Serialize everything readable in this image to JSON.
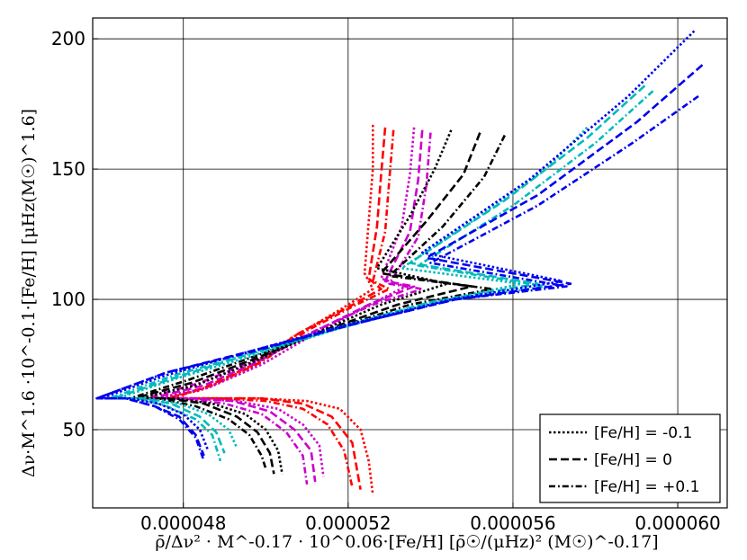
{
  "chart_data": {
    "type": "line",
    "xlabel": "ρ̄/Δν² · M^-0.17 · 10^0.06·[Fe/H] [ρ̄☉/(μHz)² (M☉)^-0.17]",
    "ylabel": "Δν·M^1.6 ·10^-0.1·[Fe/H] [μHz(M☉)^1.6]",
    "xlim": [
      4.58e-05,
      6.12e-05
    ],
    "ylim": [
      20,
      208
    ],
    "xticks": [
      4.8e-05,
      5.2e-05,
      5.6e-05,
      6e-05
    ],
    "xtick_labels": [
      "0.000048",
      "0.000052",
      "0.000056",
      "0.000060"
    ],
    "yticks": [
      50,
      100,
      150,
      200
    ],
    "ytick_labels": [
      "50",
      "100",
      "150",
      "200"
    ],
    "grid": true,
    "legend_position": "bottom-right",
    "legend": [
      {
        "label": "[Fe/H] = -0.1",
        "dash": "dotted"
      },
      {
        "label": "[Fe/H] = 0",
        "dash": "dashed"
      },
      {
        "label": "[Fe/H] = +0.1",
        "dash": "dashdot"
      }
    ],
    "series": [
      {
        "color": "#ff0000",
        "dash": "dotted",
        "x": [
          5.26e-05,
          5.26e-05,
          5.25e-05,
          5.24e-05,
          5.26e-05,
          5.18e-05,
          5.06e-05,
          4.96e-05,
          4.84e-05,
          4.74e-05,
          4.86e-05,
          4.98e-05,
          5.1e-05,
          5.18e-05,
          5.23e-05,
          5.25e-05,
          5.26e-05
        ],
        "y": [
          167,
          150,
          130,
          110,
          104,
          96,
          85,
          73,
          65,
          62,
          62,
          62,
          61,
          58,
          50,
          38,
          25
        ]
      },
      {
        "color": "#ff0000",
        "dash": "dashed",
        "x": [
          5.29e-05,
          5.28e-05,
          5.27e-05,
          5.25e-05,
          5.28e-05,
          5.2e-05,
          5.08e-05,
          4.97e-05,
          4.85e-05,
          4.76e-05,
          4.88e-05,
          4.99e-05,
          5.09e-05,
          5.16e-05,
          5.21e-05,
          5.23e-05
        ],
        "y": [
          166,
          148,
          128,
          108,
          104,
          97,
          87,
          75,
          66,
          62,
          62,
          62,
          60,
          55,
          45,
          27
        ]
      },
      {
        "color": "#ff0000",
        "dash": "dashdot",
        "x": [
          5.31e-05,
          5.3e-05,
          5.29e-05,
          5.26e-05,
          5.3e-05,
          5.22e-05,
          5.1e-05,
          4.99e-05,
          4.87e-05,
          4.77e-05,
          4.89e-05,
          5e-05,
          5.09e-05,
          5.15e-05,
          5.19e-05,
          5.21e-05
        ],
        "y": [
          165,
          146,
          126,
          107,
          104,
          98,
          88,
          76,
          67,
          62,
          62,
          61,
          58,
          52,
          42,
          28
        ]
      },
      {
        "color": "#cc00cc",
        "dash": "dotted",
        "x": [
          5.36e-05,
          5.35e-05,
          5.33e-05,
          5.28e-05,
          5.34e-05,
          5.24e-05,
          5.11e-05,
          4.99e-05,
          4.86e-05,
          4.73e-05,
          4.82e-05,
          4.93e-05,
          5.03e-05,
          5.09e-05,
          5.13e-05,
          5.14e-05
        ],
        "y": [
          166,
          148,
          128,
          108,
          105,
          97,
          86,
          75,
          66,
          62,
          62,
          61,
          58,
          52,
          44,
          32
        ]
      },
      {
        "color": "#cc00cc",
        "dash": "dashed",
        "x": [
          5.38e-05,
          5.37e-05,
          5.35e-05,
          5.29e-05,
          5.36e-05,
          5.25e-05,
          5.11e-05,
          4.98e-05,
          4.85e-05,
          4.72e-05,
          4.82e-05,
          4.92e-05,
          5.01e-05,
          5.07e-05,
          5.11e-05,
          5.12e-05
        ],
        "y": [
          165,
          146,
          126,
          107,
          105,
          98,
          87,
          76,
          67,
          62,
          62,
          61,
          57,
          50,
          42,
          30
        ]
      },
      {
        "color": "#cc00cc",
        "dash": "dashdot",
        "x": [
          5.4e-05,
          5.39e-05,
          5.37e-05,
          5.3e-05,
          5.38e-05,
          5.26e-05,
          5.12e-05,
          4.98e-05,
          4.84e-05,
          4.71e-05,
          4.8e-05,
          4.9e-05,
          4.99e-05,
          5.05e-05,
          5.09e-05,
          5.1e-05
        ],
        "y": [
          164,
          144,
          124,
          106,
          104,
          98,
          88,
          77,
          68,
          62,
          62,
          60,
          56,
          49,
          40,
          29
        ]
      },
      {
        "color": "#000000",
        "dash": "dotted",
        "x": [
          5.45e-05,
          5.41e-05,
          5.35e-05,
          5.27e-05,
          5.44e-05,
          5.28e-05,
          5.12e-05,
          4.97e-05,
          4.83e-05,
          4.69e-05,
          4.78e-05,
          4.87e-05,
          4.95e-05,
          5e-05,
          5.03e-05,
          5.04e-05
        ],
        "y": [
          165,
          150,
          132,
          112,
          106,
          98,
          87,
          76,
          67,
          62,
          62,
          60,
          56,
          50,
          42,
          33
        ]
      },
      {
        "color": "#000000",
        "dash": "dashed",
        "x": [
          5.52e-05,
          5.48e-05,
          5.39e-05,
          5.28e-05,
          5.5e-05,
          5.32e-05,
          5.14e-05,
          4.97e-05,
          4.82e-05,
          4.68e-05,
          4.76e-05,
          4.85e-05,
          4.93e-05,
          4.98e-05,
          5.01e-05,
          5.02e-05
        ],
        "y": [
          164,
          148,
          130,
          110,
          105,
          98,
          88,
          77,
          68,
          62,
          62,
          60,
          55,
          49,
          41,
          33
        ]
      },
      {
        "color": "#000000",
        "dash": "dashdot",
        "x": [
          5.58e-05,
          5.53e-05,
          5.43e-05,
          5.3e-05,
          5.55e-05,
          5.35e-05,
          5.15e-05,
          4.97e-05,
          4.81e-05,
          4.67e-05,
          4.74e-05,
          4.83e-05,
          4.91e-05,
          4.96e-05,
          4.99e-05,
          5e-05
        ],
        "y": [
          163,
          147,
          128,
          109,
          104,
          98,
          88,
          78,
          69,
          62,
          62,
          59,
          54,
          48,
          40,
          35
        ]
      },
      {
        "color": "#00bbbb",
        "dash": "dotted",
        "x": [
          5.78e-05,
          5.68e-05,
          5.52e-05,
          5.33e-05,
          5.62e-05,
          5.38e-05,
          5.16e-05,
          4.96e-05,
          4.79e-05,
          4.64e-05,
          4.71e-05,
          4.79e-05,
          4.86e-05,
          4.91e-05,
          4.93e-05
        ],
        "y": [
          166,
          150,
          132,
          112,
          106,
          98,
          88,
          78,
          70,
          62,
          62,
          60,
          56,
          50,
          43
        ]
      },
      {
        "color": "#00bbbb",
        "dash": "dashed",
        "x": [
          5.92e-05,
          5.78e-05,
          5.58e-05,
          5.35e-05,
          5.66e-05,
          5.4e-05,
          5.17e-05,
          4.96e-05,
          4.78e-05,
          4.63e-05,
          4.7e-05,
          4.77e-05,
          4.84e-05,
          4.88e-05,
          4.9e-05
        ],
        "y": [
          182,
          162,
          138,
          114,
          106,
          99,
          89,
          79,
          70,
          62,
          62,
          60,
          55,
          49,
          41
        ]
      },
      {
        "color": "#00bbbb",
        "dash": "dashdot",
        "x": [
          5.94e-05,
          5.8e-05,
          5.6e-05,
          5.37e-05,
          5.68e-05,
          5.42e-05,
          5.18e-05,
          4.96e-05,
          4.78e-05,
          4.62e-05,
          4.69e-05,
          4.76e-05,
          4.83e-05,
          4.87e-05,
          4.89e-05
        ],
        "y": [
          180,
          160,
          136,
          113,
          105,
          99,
          89,
          79,
          71,
          62,
          62,
          59,
          54,
          48,
          38
        ]
      },
      {
        "color": "#0000ee",
        "dash": "dotted",
        "x": [
          6.04e-05,
          5.88e-05,
          5.64e-05,
          5.38e-05,
          5.72e-05,
          5.45e-05,
          5.19e-05,
          4.96e-05,
          4.76e-05,
          4.6e-05,
          4.67e-05,
          4.74e-05,
          4.8e-05,
          4.84e-05,
          4.86e-05
        ],
        "y": [
          203,
          178,
          146,
          118,
          107,
          100,
          90,
          80,
          71,
          62,
          62,
          60,
          56,
          50,
          42
        ]
      },
      {
        "color": "#0000ee",
        "dash": "dashed",
        "x": [
          6.06e-05,
          5.9e-05,
          5.66e-05,
          5.39e-05,
          5.74e-05,
          5.46e-05,
          5.2e-05,
          4.96e-05,
          4.76e-05,
          4.59e-05,
          4.66e-05,
          4.73e-05,
          4.79e-05,
          4.83e-05,
          4.85e-05
        ],
        "y": [
          190,
          168,
          140,
          116,
          106,
          100,
          90,
          80,
          72,
          62,
          62,
          59,
          55,
          48,
          40
        ]
      },
      {
        "color": "#0000ee",
        "dash": "dashdot",
        "x": [
          6.05e-05,
          5.89e-05,
          5.66e-05,
          5.4e-05,
          5.73e-05,
          5.46e-05,
          5.2e-05,
          4.97e-05,
          4.76e-05,
          4.59e-05,
          4.66e-05,
          4.73e-05,
          4.79e-05,
          4.83e-05,
          4.85e-05
        ],
        "y": [
          178,
          160,
          136,
          114,
          105,
          100,
          90,
          80,
          72,
          62,
          62,
          59,
          54,
          47,
          38
        ]
      }
    ]
  }
}
